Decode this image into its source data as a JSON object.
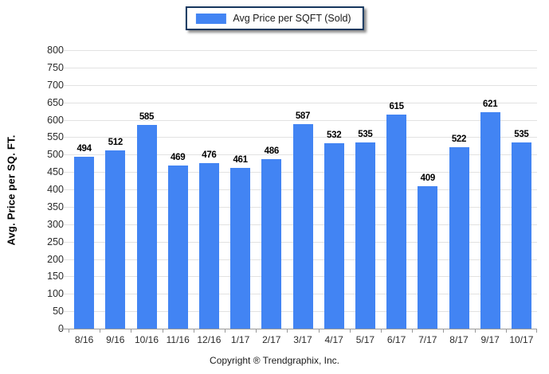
{
  "legend": {
    "label": "Avg Price per SQFT (Sold)"
  },
  "footer": {
    "text": "Copyright ® Trendgraphix, Inc."
  },
  "colors": {
    "bar": "#4284f3",
    "legend_border": "#17375e",
    "gridline": "#e2e2e2",
    "axis": "#999999",
    "tick_label": "#2b2b2b"
  },
  "chart_data": {
    "type": "bar",
    "title": "",
    "xlabel": "",
    "ylabel": "Avg. Price per SQ. FT.",
    "categories": [
      "8/16",
      "9/16",
      "10/16",
      "11/16",
      "12/16",
      "1/17",
      "2/17",
      "3/17",
      "4/17",
      "5/17",
      "6/17",
      "7/17",
      "8/17",
      "9/17",
      "10/17"
    ],
    "series": [
      {
        "name": "Avg Price per SQFT (Sold)",
        "values": [
          494,
          512,
          585,
          469,
          476,
          461,
          486,
          587,
          532,
          535,
          615,
          409,
          522,
          621,
          535
        ]
      }
    ],
    "ylim": [
      0,
      800
    ],
    "ytick_step": 50,
    "grid": true,
    "legend_position": "top-center",
    "data_labels": true
  }
}
